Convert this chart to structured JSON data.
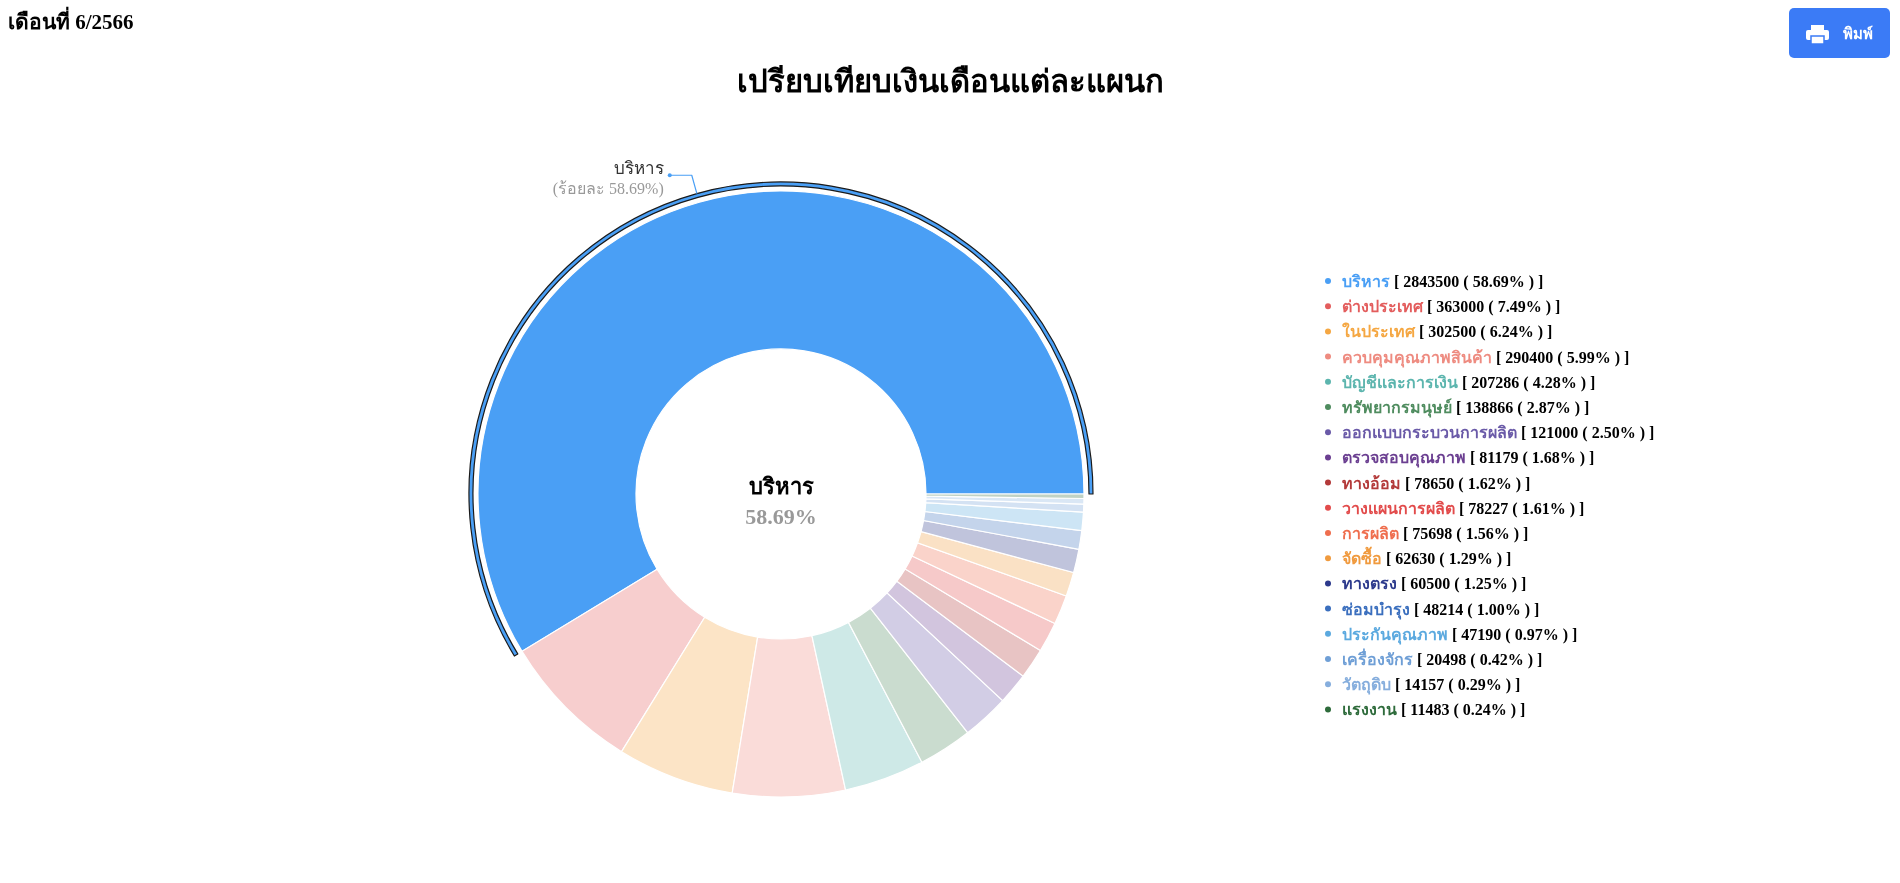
{
  "chart_data": {
    "type": "donut",
    "title": "เปรียบเทียบเงินเดือนแต่ละแผนก",
    "subtitle": "เดือนที่ 6/2566",
    "categories": [
      "บริหาร",
      "ต่างประเทศ",
      "ในประเทศ",
      "ควบคุมคุณภาพสินค้า",
      "บัญชีและการเงิน",
      "ทรัพยากรมนุษย์",
      "ออกแบบกระบวนการผลิต",
      "ตรวจสอบคุณภาพ",
      "ทางอ้อม",
      "วางแผนการผลิต",
      "การผลิต",
      "จัดซื้อ",
      "ทางตรง",
      "ซ่อมบำรุง",
      "ประกันคุณภาพ",
      "เครื่องจักร",
      "วัตถุดิบ",
      "แรงงาน"
    ],
    "values": [
      2843500,
      363000,
      302500,
      290400,
      207286,
      138866,
      121000,
      81179,
      78650,
      78227,
      75698,
      62630,
      60500,
      48214,
      47190,
      20498,
      14157,
      11483
    ],
    "colors": [
      "#4a9ff5",
      "#e35d5d",
      "#f5a742",
      "#ee8b80",
      "#5cb5ae",
      "#4f8c5f",
      "#6a5aa8",
      "#6b3f91",
      "#b33a3a",
      "#e24b4b",
      "#ef6e4e",
      "#f09a3e",
      "#2d3a8c",
      "#3b6fbe",
      "#5ba9df",
      "#6f9fd6",
      "#86aedd",
      "#2e6b3b"
    ],
    "value_labels": [
      "[ 2843500 ( 58.69% ) ]",
      "[ 363000 ( 7.49% ) ]",
      "[ 302500 ( 6.24% ) ]",
      "[ 290400 ( 5.99% ) ]",
      "[ 207286 ( 4.28% ) ]",
      "[ 138866 ( 2.87% ) ]",
      "[ 121000 ( 2.50% ) ]",
      "[ 81179 ( 1.68% ) ]",
      "[ 78650 ( 1.62% ) ]",
      "[ 78227 ( 1.61% ) ]",
      "[ 75698 ( 1.56% ) ]",
      "[ 62630 ( 1.29% ) ]",
      "[ 60500 ( 1.25% ) ]",
      "[ 48214 ( 1.00% ) ]",
      "[ 47190 ( 0.97% ) ]",
      "[ 20498 ( 0.42% ) ]",
      "[ 14157 ( 0.29% ) ]",
      "[ 11483 ( 0.24% ) ]"
    ],
    "legend": "right",
    "annotations": [
      {
        "text": "บริหาร",
        "x": "บริหาร"
      },
      {
        "text": "(ร้อยละ 58.69%)",
        "x": "บริหาร"
      },
      {
        "text": "บริหาร",
        "x": "บริหาร"
      },
      {
        "text": "58.69%",
        "x": "บริหาร"
      },
      "พิมพ์"
    ]
  }
}
